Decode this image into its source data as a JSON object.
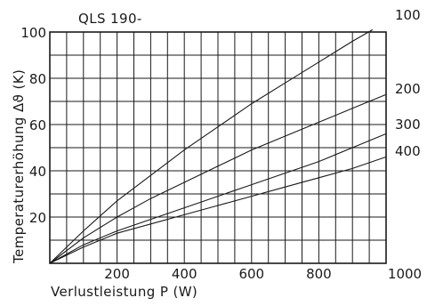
{
  "chart_data": {
    "type": "line",
    "title": "QLS 190-",
    "xlabel": "Verlustleistung P (W)",
    "ylabel": "Temperaturerhöhung Δϑ (K)",
    "xlim": [
      0,
      1000
    ],
    "ylim": [
      0,
      100
    ],
    "grid": true,
    "x_tick_labels": [
      "200",
      "400",
      "600",
      "800",
      "1000"
    ],
    "y_tick_labels": [
      "20",
      "40",
      "60",
      "80",
      "100"
    ],
    "series": [
      {
        "name": "100",
        "x": [
          0,
          100,
          200,
          300,
          400,
          500,
          600,
          700,
          800,
          900,
          960
        ],
        "y": [
          0,
          14,
          27,
          38,
          49,
          59,
          69,
          78,
          87,
          96,
          101
        ]
      },
      {
        "name": "200",
        "x": [
          0,
          100,
          200,
          300,
          400,
          500,
          600,
          700,
          800,
          900,
          1000
        ],
        "y": [
          0,
          11,
          20,
          28,
          35,
          42,
          49,
          55,
          61,
          67,
          73
        ]
      },
      {
        "name": "300",
        "x": [
          0,
          100,
          200,
          300,
          400,
          500,
          600,
          700,
          800,
          900,
          1000
        ],
        "y": [
          0,
          8,
          14,
          19,
          24,
          29,
          34,
          39,
          44,
          50,
          56
        ]
      },
      {
        "name": "400",
        "x": [
          0,
          100,
          200,
          300,
          400,
          500,
          600,
          700,
          800,
          900,
          1000
        ],
        "y": [
          0,
          7,
          13,
          17,
          21,
          25,
          29,
          33,
          37,
          41,
          46
        ]
      }
    ]
  }
}
